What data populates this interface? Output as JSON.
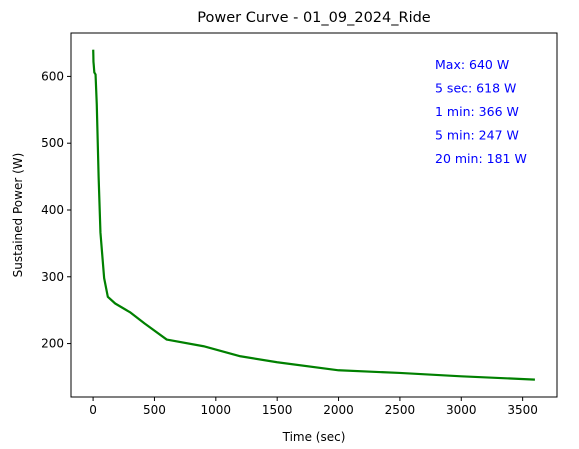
{
  "chart_data": {
    "type": "line",
    "title": "Power Curve - 01_09_2024_Ride",
    "xlabel": "Time (sec)",
    "ylabel": "Sustained Power (W)",
    "xlim": [
      -180,
      3780
    ],
    "ylim": [
      120,
      665
    ],
    "xticks": [
      0,
      500,
      1000,
      1500,
      2000,
      2500,
      3000,
      3500
    ],
    "yticks": [
      200,
      300,
      400,
      500,
      600
    ],
    "grid": false,
    "line_color": "#008000",
    "annotation_color": "#0000ff",
    "series": [
      {
        "x": [
          1,
          2,
          3,
          5,
          10,
          20,
          30,
          45,
          60,
          90,
          120,
          180,
          300,
          420,
          600,
          900,
          1200,
          1500,
          2000,
          2500,
          3000,
          3600
        ],
        "y": [
          640,
          632,
          622,
          618,
          606,
          603,
          558,
          450,
          366,
          298,
          270,
          260,
          247,
          230,
          206,
          196,
          181,
          172,
          160,
          156,
          151,
          146
        ]
      }
    ],
    "annotations": [
      "Max:   640 W",
      "5 sec:   618 W",
      "1 min:   366 W",
      "5 min:   247 W",
      "20 min: 181 W"
    ]
  }
}
